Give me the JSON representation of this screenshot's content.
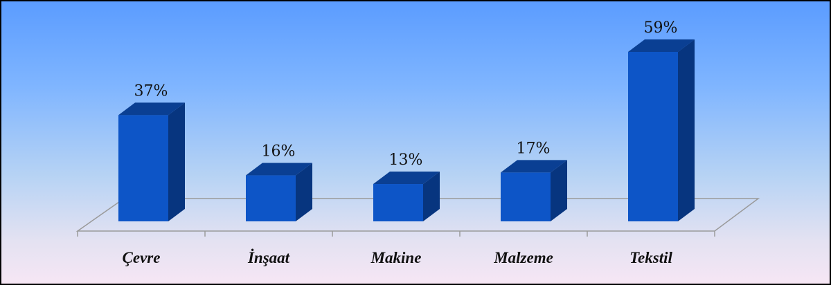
{
  "chart_data": {
    "type": "bar",
    "style": "3d-column",
    "categories": [
      "Çevre",
      "İnşaat",
      "Makine",
      "Malzeme",
      "Tekstil"
    ],
    "values": [
      37,
      16,
      13,
      17,
      59
    ],
    "value_labels": [
      "37%",
      "16%",
      "13%",
      "17%",
      "59%"
    ],
    "unit": "%",
    "ylim": [
      0,
      59
    ],
    "grid": false,
    "legend": "none",
    "title": "",
    "xlabel": "",
    "ylabel": "",
    "colors": {
      "bar_front": "#0d55c7",
      "bar_top": "#0a3f93",
      "bar_side": "#07357f",
      "floor_line": "#9a9a9a",
      "background_top": "#5b9cff",
      "background_bottom": "#f6e6f4"
    }
  }
}
